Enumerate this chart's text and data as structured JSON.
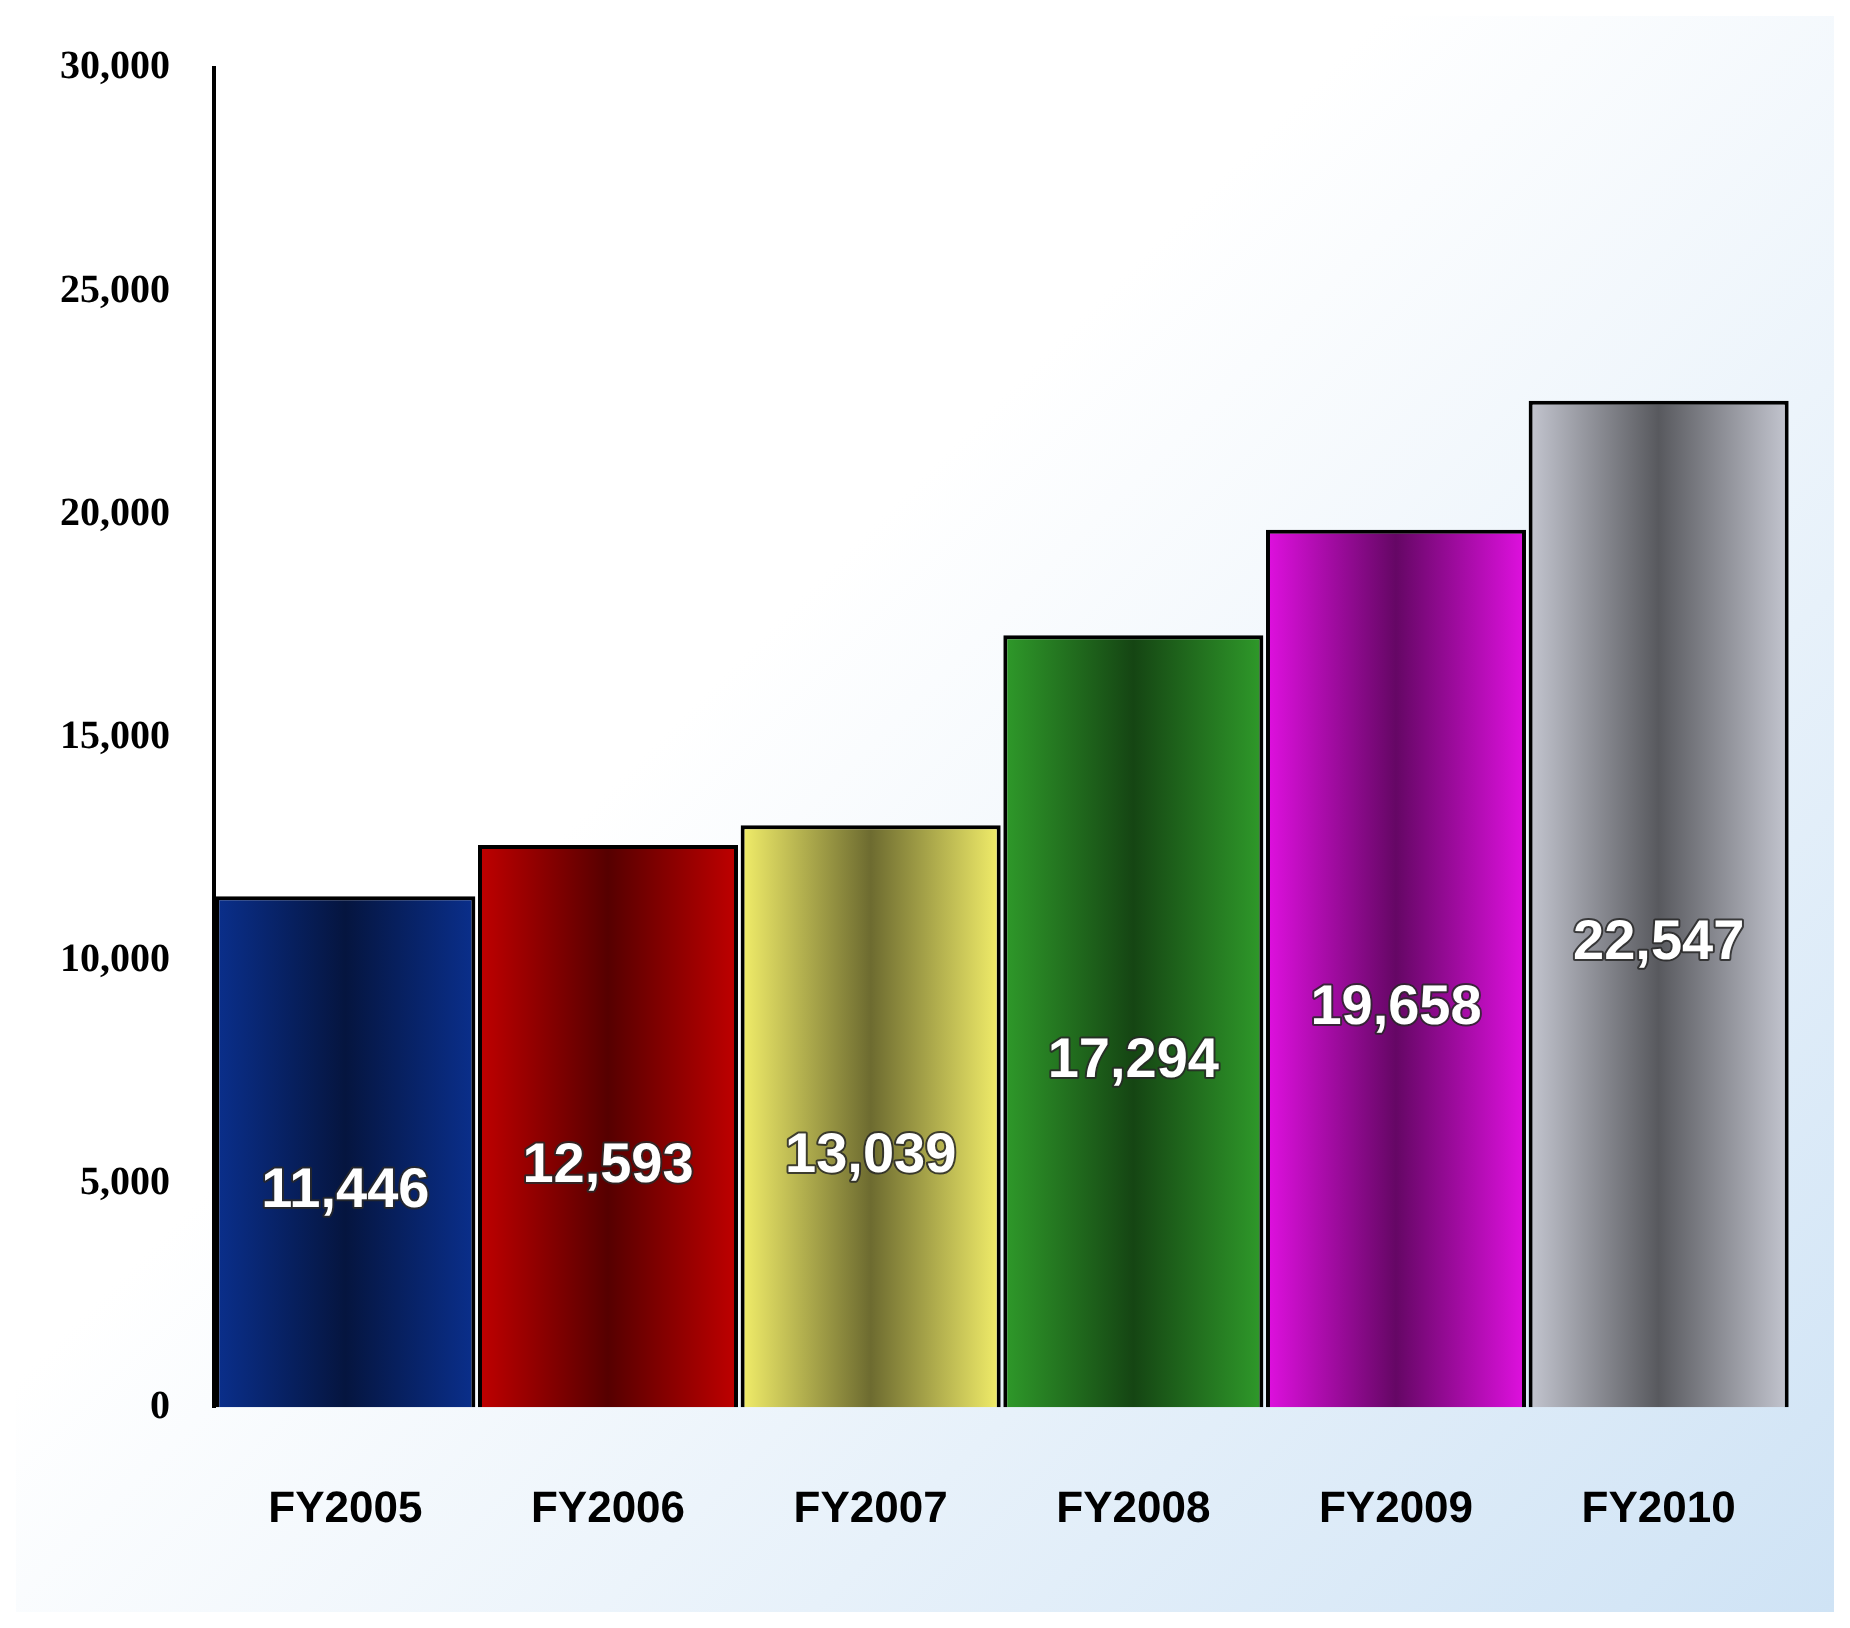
{
  "chart_data": {
    "type": "bar",
    "categories": [
      "FY2005",
      "FY2006",
      "FY2007",
      "FY2008",
      "FY2009",
      "FY2010"
    ],
    "values": [
      11446,
      12593,
      13039,
      17294,
      19658,
      22547
    ],
    "colors": [
      "#0a2f8c",
      "#c00000",
      "#f2ee6a",
      "#2f9a2a",
      "#e010e0",
      "#c4c6d0"
    ],
    "ylim": [
      0,
      30000
    ],
    "yticks": [
      0,
      {
        "value": 5000,
        "label": "5,000"
      },
      {
        "value": 10000,
        "label": "10,000"
      },
      {
        "value": 15000,
        "label": "15,000"
      },
      {
        "value": 20000,
        "label": "20,000"
      },
      {
        "value": 25000,
        "label": "25,000"
      },
      {
        "value": 30000,
        "label": "30,000"
      }
    ],
    "value_labels": [
      "11,446",
      "12,593",
      "13,039",
      "17,294",
      "19,658",
      "22,547"
    ],
    "grid": false,
    "legend": false
  }
}
